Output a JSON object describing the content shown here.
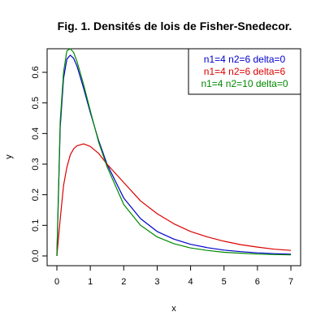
{
  "chart_data": {
    "type": "line",
    "title": "Fig. 1. Densités de lois de Fisher-Snedecor.",
    "xlabel": "x",
    "ylabel": "y",
    "xlim": [
      0,
      7
    ],
    "ylim": [
      0,
      0.65
    ],
    "x_ticks": [
      "0",
      "1",
      "2",
      "3",
      "4",
      "5",
      "6",
      "7"
    ],
    "y_ticks": [
      "0.0",
      "0.1",
      "0.2",
      "0.3",
      "0.4",
      "0.5",
      "0.6"
    ],
    "legend_position": "top-right",
    "x": [
      0,
      0.1,
      0.2,
      0.3,
      0.4,
      0.5,
      0.6,
      0.8,
      1.0,
      1.25,
      1.5,
      2.0,
      2.5,
      3.0,
      3.5,
      4.0,
      4.5,
      5.0,
      5.5,
      6.0,
      6.5,
      7.0
    ],
    "series": [
      {
        "name": "n1=4 n2=6 delta=0",
        "color": "#0000cc",
        "values": [
          0,
          0.42,
          0.58,
          0.643,
          0.656,
          0.646,
          0.621,
          0.548,
          0.469,
          0.377,
          0.3,
          0.189,
          0.122,
          0.08,
          0.055,
          0.038,
          0.027,
          0.019,
          0.014,
          0.01,
          0.0075,
          0.0057
        ]
      },
      {
        "name": "n1=4 n2=6 delta=6",
        "color": "#dd0000",
        "values": [
          0,
          0.12,
          0.23,
          0.29,
          0.33,
          0.35,
          0.36,
          0.366,
          0.358,
          0.335,
          0.3,
          0.24,
          0.18,
          0.138,
          0.105,
          0.08,
          0.062,
          0.048,
          0.037,
          0.029,
          0.022,
          0.018
        ]
      },
      {
        "name": "n1=4 n2=10 delta=0",
        "color": "#008800",
        "values": [
          0,
          0.44,
          0.6,
          0.67,
          0.677,
          0.665,
          0.636,
          0.56,
          0.475,
          0.372,
          0.292,
          0.168,
          0.1,
          0.062,
          0.04,
          0.026,
          0.018,
          0.012,
          0.009,
          0.006,
          0.0045,
          0.0035
        ]
      }
    ]
  }
}
